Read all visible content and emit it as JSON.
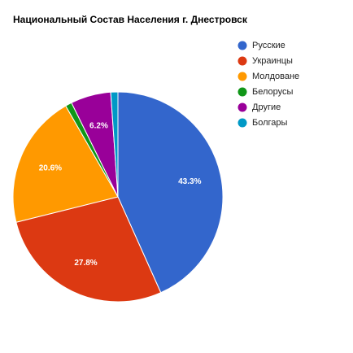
{
  "chart_data": {
    "type": "pie",
    "title": "Национальный Состав Населения г. Днестровск",
    "categories": [
      "Русские",
      "Украинцы",
      "Молдоване",
      "Белорусы",
      "Другие",
      "Болгары"
    ],
    "values": [
      43.3,
      27.8,
      20.6,
      1.0,
      6.2,
      1.1
    ],
    "value_labels": [
      "43.3%",
      "27.8%",
      "20.6%",
      null,
      "6.2%",
      null
    ],
    "colors": [
      "#3366cc",
      "#dc3912",
      "#ff9900",
      "#109618",
      "#990099",
      "#0099c6"
    ],
    "legend": "right"
  }
}
